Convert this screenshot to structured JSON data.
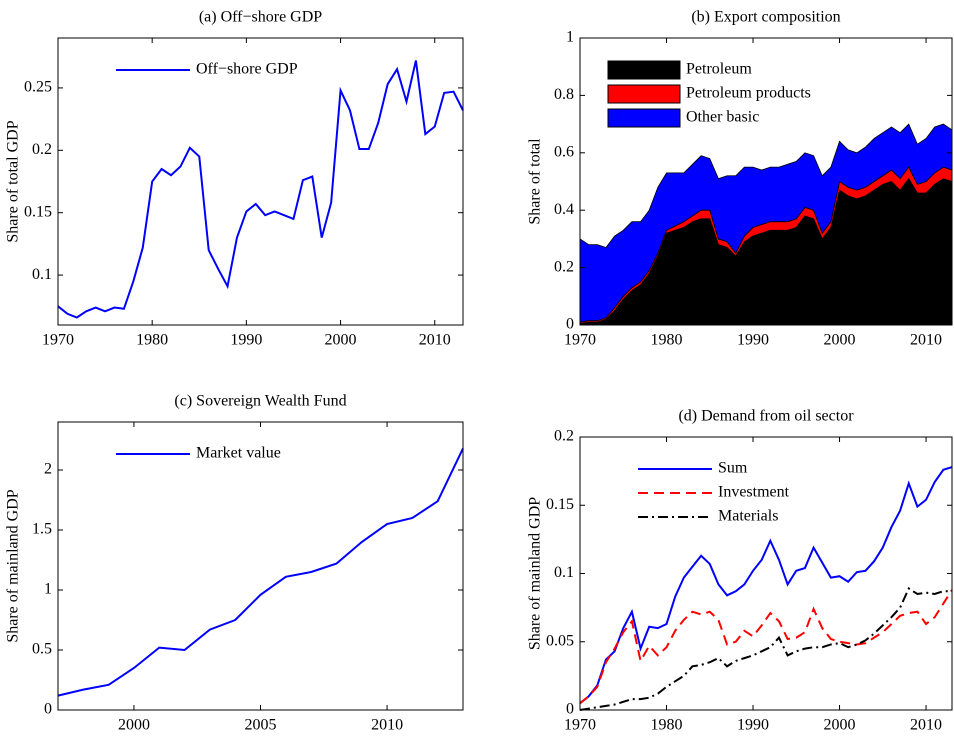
{
  "chart_data": [
    {
      "type": "line",
      "title": "(a) Off−shore GDP",
      "ylabel": "Share of total GDP",
      "x": [
        1970,
        1971,
        1972,
        1973,
        1974,
        1975,
        1976,
        1977,
        1978,
        1979,
        1980,
        1981,
        1982,
        1983,
        1984,
        1985,
        1986,
        1987,
        1988,
        1989,
        1990,
        1991,
        1992,
        1993,
        1994,
        1995,
        1996,
        1997,
        1998,
        1999,
        2000,
        2001,
        2002,
        2003,
        2004,
        2005,
        2006,
        2007,
        2008,
        2009,
        2010,
        2011,
        2012,
        2013
      ],
      "series": [
        {
          "name": "Off−shore GDP",
          "color": "#0000ff",
          "linestyle": "solid",
          "values": [
            0.075,
            0.069,
            0.066,
            0.071,
            0.074,
            0.071,
            0.074,
            0.073,
            0.095,
            0.122,
            0.175,
            0.185,
            0.18,
            0.187,
            0.202,
            0.195,
            0.12,
            0.105,
            0.091,
            0.13,
            0.151,
            0.157,
            0.148,
            0.151,
            0.148,
            0.145,
            0.176,
            0.179,
            0.13,
            0.158,
            0.248,
            0.232,
            0.201,
            0.201,
            0.222,
            0.253,
            0.265,
            0.239,
            0.272,
            0.213,
            0.219,
            0.246,
            0.247,
            0.232
          ]
        }
      ],
      "xlim": [
        1970,
        2013
      ],
      "xticks": [
        1970,
        1980,
        1990,
        2000,
        2010
      ],
      "ylim": [
        0.06,
        0.29
      ],
      "yticks": [
        0.1,
        0.15,
        0.2,
        0.25
      ],
      "legend": "upper left"
    },
    {
      "type": "area",
      "title": "(b) Export composition",
      "ylabel": "Share of total",
      "x": [
        1970,
        1971,
        1972,
        1973,
        1974,
        1975,
        1976,
        1977,
        1978,
        1979,
        1980,
        1981,
        1982,
        1983,
        1984,
        1985,
        1986,
        1987,
        1988,
        1989,
        1990,
        1991,
        1992,
        1993,
        1994,
        1995,
        1996,
        1997,
        1998,
        1999,
        2000,
        2001,
        2002,
        2003,
        2004,
        2005,
        2006,
        2007,
        2008,
        2009,
        2010,
        2011,
        2012,
        2013
      ],
      "series": [
        {
          "name": "Petroleum",
          "color": "#000000",
          "values": [
            0.005,
            0.01,
            0.01,
            0.02,
            0.05,
            0.09,
            0.12,
            0.14,
            0.18,
            0.24,
            0.32,
            0.33,
            0.34,
            0.36,
            0.37,
            0.37,
            0.28,
            0.27,
            0.24,
            0.29,
            0.31,
            0.32,
            0.33,
            0.33,
            0.33,
            0.34,
            0.38,
            0.37,
            0.3,
            0.34,
            0.47,
            0.45,
            0.44,
            0.45,
            0.47,
            0.49,
            0.5,
            0.47,
            0.51,
            0.46,
            0.46,
            0.49,
            0.51,
            0.5
          ]
        },
        {
          "name": "Petroleum products",
          "color": "#ff0000",
          "values": [
            0.005,
            0.005,
            0.005,
            0.005,
            0.01,
            0.01,
            0.01,
            0.01,
            0.01,
            0.01,
            0.01,
            0.015,
            0.02,
            0.02,
            0.03,
            0.03,
            0.02,
            0.02,
            0.01,
            0.02,
            0.03,
            0.03,
            0.03,
            0.03,
            0.03,
            0.03,
            0.03,
            0.03,
            0.02,
            0.02,
            0.03,
            0.03,
            0.03,
            0.03,
            0.03,
            0.03,
            0.04,
            0.04,
            0.04,
            0.03,
            0.04,
            0.04,
            0.04,
            0.04
          ]
        },
        {
          "name": "Other basic",
          "color": "#0000ff",
          "values": [
            0.29,
            0.265,
            0.265,
            0.245,
            0.25,
            0.23,
            0.23,
            0.21,
            0.21,
            0.23,
            0.2,
            0.185,
            0.17,
            0.18,
            0.19,
            0.18,
            0.21,
            0.23,
            0.27,
            0.24,
            0.21,
            0.19,
            0.19,
            0.19,
            0.2,
            0.2,
            0.19,
            0.19,
            0.2,
            0.19,
            0.14,
            0.13,
            0.13,
            0.14,
            0.15,
            0.15,
            0.15,
            0.16,
            0.15,
            0.14,
            0.15,
            0.16,
            0.15,
            0.14
          ]
        }
      ],
      "xlim": [
        1970,
        2013
      ],
      "xticks": [
        1970,
        1980,
        1990,
        2000,
        2010
      ],
      "ylim": [
        0,
        1
      ],
      "yticks": [
        0,
        0.2,
        0.4,
        0.6,
        0.8,
        1
      ],
      "legend": "upper left"
    },
    {
      "type": "line",
      "title": "(c) Sovereign Wealth Fund",
      "ylabel": "Share of mainland GDP",
      "x": [
        1997,
        1998,
        1999,
        2000,
        2001,
        2002,
        2003,
        2004,
        2005,
        2006,
        2007,
        2008,
        2009,
        2010,
        2011,
        2012,
        2013
      ],
      "series": [
        {
          "name": "Market value",
          "color": "#0000ff",
          "linestyle": "solid",
          "values": [
            0.12,
            0.17,
            0.21,
            0.35,
            0.52,
            0.5,
            0.67,
            0.75,
            0.96,
            1.11,
            1.15,
            1.22,
            1.4,
            1.55,
            1.6,
            1.74,
            2.18
          ]
        }
      ],
      "xlim": [
        1997,
        2013
      ],
      "xticks": [
        2000,
        2005,
        2010
      ],
      "ylim": [
        0,
        2.4
      ],
      "yticks": [
        0,
        0.5,
        1,
        1.5,
        2
      ],
      "legend": "upper left"
    },
    {
      "type": "line",
      "title": "(d) Demand from oil sector",
      "ylabel": "Share of mainland GDP",
      "x": [
        1970,
        1971,
        1972,
        1973,
        1974,
        1975,
        1976,
        1977,
        1978,
        1979,
        1980,
        1981,
        1982,
        1983,
        1984,
        1985,
        1986,
        1987,
        1988,
        1989,
        1990,
        1991,
        1992,
        1993,
        1994,
        1995,
        1996,
        1997,
        1998,
        1999,
        2000,
        2001,
        2002,
        2003,
        2004,
        2005,
        2006,
        2007,
        2008,
        2009,
        2010,
        2011,
        2012,
        2013
      ],
      "series": [
        {
          "name": "Sum",
          "color": "#0000ff",
          "linestyle": "solid",
          "values": [
            0.005,
            0.01,
            0.018,
            0.037,
            0.043,
            0.06,
            0.072,
            0.045,
            0.061,
            0.06,
            0.063,
            0.083,
            0.097,
            0.105,
            0.113,
            0.107,
            0.092,
            0.084,
            0.087,
            0.092,
            0.102,
            0.11,
            0.124,
            0.11,
            0.092,
            0.102,
            0.104,
            0.119,
            0.108,
            0.097,
            0.098,
            0.094,
            0.101,
            0.102,
            0.109,
            0.119,
            0.134,
            0.146,
            0.166,
            0.149,
            0.154,
            0.167,
            0.176,
            0.178
          ]
        },
        {
          "name": "Investment",
          "color": "#ff0000",
          "linestyle": "dashed",
          "values": [
            0.005,
            0.01,
            0.017,
            0.035,
            0.045,
            0.057,
            0.065,
            0.036,
            0.047,
            0.04,
            0.046,
            0.058,
            0.066,
            0.072,
            0.07,
            0.072,
            0.066,
            0.048,
            0.05,
            0.058,
            0.054,
            0.062,
            0.071,
            0.065,
            0.052,
            0.053,
            0.057,
            0.074,
            0.06,
            0.052,
            0.05,
            0.049,
            0.048,
            0.049,
            0.053,
            0.057,
            0.063,
            0.069,
            0.071,
            0.072,
            0.063,
            0.068,
            0.078,
            0.088
          ]
        },
        {
          "name": "Materials",
          "color": "#000000",
          "linestyle": "dashdot",
          "values": [
            0,
            0.001,
            0.002,
            0.003,
            0.004,
            0.006,
            0.008,
            0.008,
            0.009,
            0.012,
            0.017,
            0.021,
            0.025,
            0.032,
            0.033,
            0.035,
            0.038,
            0.032,
            0.036,
            0.038,
            0.04,
            0.043,
            0.046,
            0.053,
            0.04,
            0.043,
            0.045,
            0.046,
            0.046,
            0.048,
            0.049,
            0.046,
            0.048,
            0.051,
            0.056,
            0.062,
            0.068,
            0.075,
            0.089,
            0.085,
            0.086,
            0.085,
            0.087,
            0.087
          ]
        }
      ],
      "xlim": [
        1970,
        2013
      ],
      "xticks": [
        1970,
        1980,
        1990,
        2000,
        2010
      ],
      "ylim": [
        0,
        0.2
      ],
      "yticks": [
        0,
        0.05,
        0.1,
        0.15,
        0.2
      ],
      "legend": "upper left"
    }
  ]
}
